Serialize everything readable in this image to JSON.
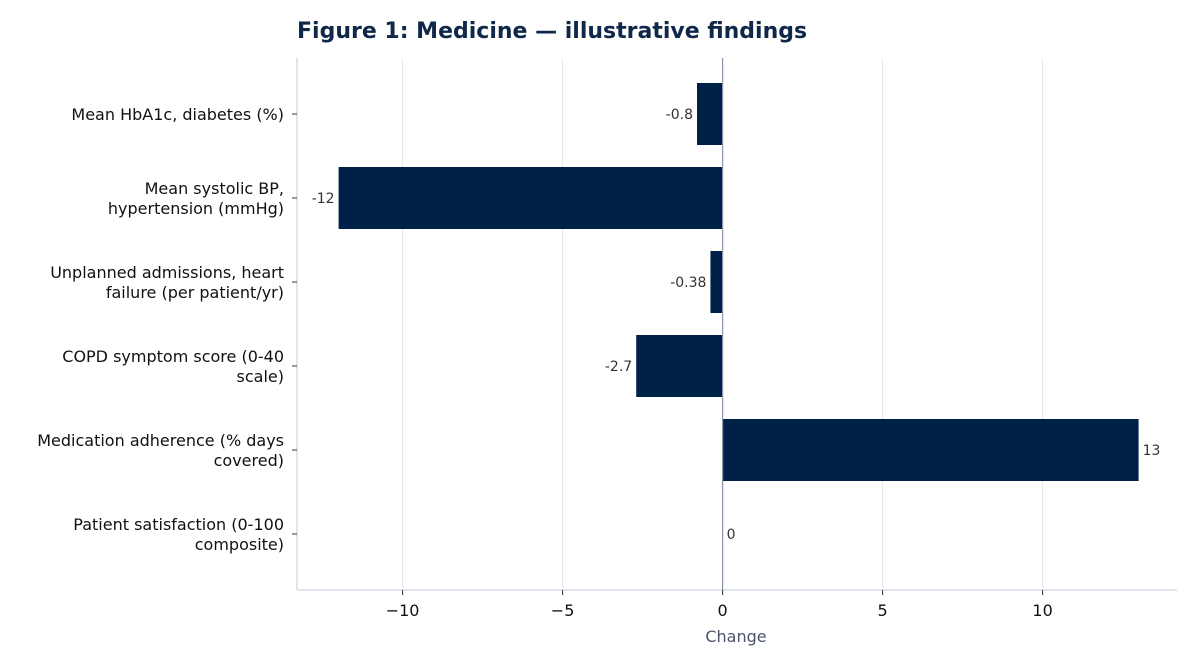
{
  "chart_data": {
    "type": "bar",
    "orientation": "horizontal",
    "title": "Figure 1: Medicine — illustrative findings",
    "xlabel": "Change",
    "ylabel": "",
    "xlim": [
      -13.3,
      14.2
    ],
    "x_ticks": [
      -10,
      -5,
      0,
      5,
      10
    ],
    "x_tick_labels": [
      "−10",
      "−5",
      "0",
      "5",
      "10"
    ],
    "grid": "vertical",
    "categories": [
      [
        "Mean HbA1c, diabetes (%)"
      ],
      [
        "Mean systolic BP,",
        "hypertension (mmHg)"
      ],
      [
        "Unplanned admissions, heart",
        "failure (per patient/yr)"
      ],
      [
        "COPD symptom score (0-40",
        "scale)"
      ],
      [
        "Medication adherence (% days",
        "covered)"
      ],
      [
        "Patient satisfaction (0-100",
        "composite)"
      ]
    ],
    "values": [
      -0.8,
      -12,
      -0.38,
      -2.7,
      13,
      0
    ],
    "value_labels": [
      "-0.8",
      "-12",
      "-0.38",
      "-2.7",
      "13",
      "0"
    ],
    "colors": {
      "bar": "#002147",
      "grid": "#e5e7eb",
      "axis": "#cbd5e0",
      "zero_line": "#8a94a6"
    }
  }
}
